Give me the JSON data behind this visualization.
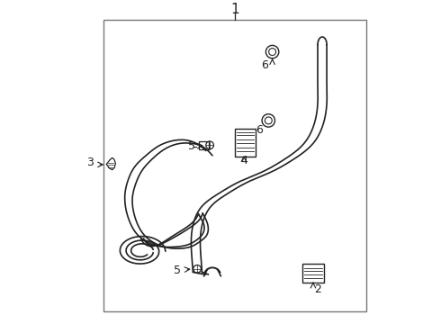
{
  "bg_color": "#ffffff",
  "line_color": "#222222",
  "label_color": "#222222",
  "border": [
    0.14,
    0.04,
    0.95,
    0.94
  ],
  "label_fs": 9,
  "label1_fs": 11,
  "lw_main": 1.2
}
